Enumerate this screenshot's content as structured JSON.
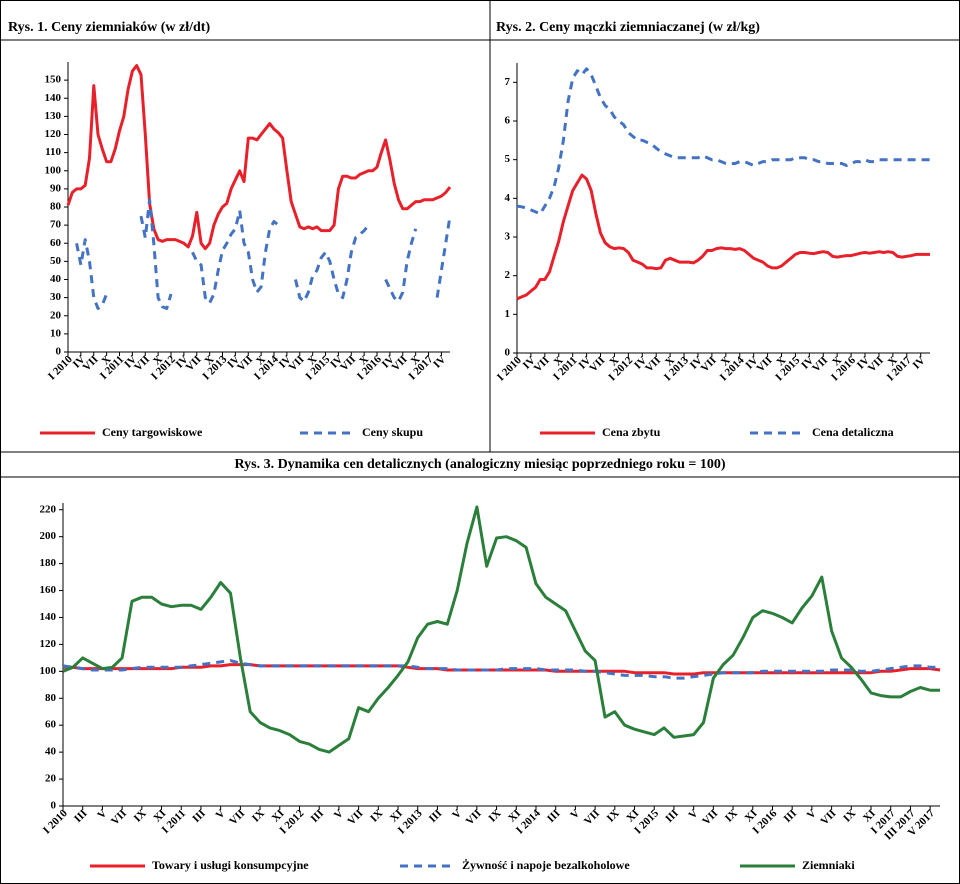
{
  "chart_data": [
    {
      "type": "line",
      "title": "Rys. 1. Ceny ziemniaków (w zł/dt)",
      "categories": [
        "I 2010",
        null,
        null,
        "IV",
        null,
        null,
        "VII",
        null,
        null,
        "X",
        null,
        null,
        "I 2011",
        null,
        null,
        "IV",
        null,
        null,
        "VII",
        null,
        null,
        "X",
        null,
        null,
        "I 2012",
        null,
        null,
        "IV",
        null,
        null,
        "VII",
        null,
        null,
        "X",
        null,
        null,
        "I 2013",
        null,
        null,
        "IV",
        null,
        null,
        "VII",
        null,
        null,
        "X",
        null,
        null,
        "I 2014",
        null,
        null,
        "IV",
        null,
        null,
        "VII",
        null,
        null,
        "X",
        null,
        null,
        "I 2015",
        null,
        null,
        "IV",
        null,
        null,
        "VII",
        null,
        null,
        "X",
        null,
        null,
        "I 2016",
        null,
        null,
        "IV",
        null,
        null,
        "VII",
        null,
        null,
        "X",
        null,
        null,
        "I 2017",
        null,
        null,
        "IV",
        null,
        null
      ],
      "ylim": [
        0,
        160
      ],
      "yticks": [
        0,
        10,
        20,
        30,
        40,
        50,
        60,
        70,
        80,
        90,
        100,
        110,
        120,
        130,
        140,
        150
      ],
      "legend": "bottom",
      "series": [
        {
          "name": "Ceny targowiskowe",
          "color": "#e8202a",
          "line_style": "solid",
          "values": [
            81,
            88,
            90,
            90,
            92,
            107,
            147,
            120,
            112,
            105,
            105,
            112,
            122,
            130,
            145,
            155,
            158,
            153,
            120,
            82,
            68,
            62,
            61,
            62,
            62,
            62,
            61,
            60,
            58,
            64,
            77,
            60,
            57,
            60,
            70,
            76,
            80,
            82,
            90,
            95,
            100,
            94,
            118,
            118,
            117,
            120,
            123,
            126,
            123,
            121,
            118,
            100,
            83,
            76,
            69,
            68,
            69,
            68,
            69,
            67,
            67,
            67,
            70,
            90,
            97,
            97,
            96,
            96,
            98,
            99,
            100,
            100,
            102,
            110,
            117,
            106,
            93,
            84,
            79,
            79,
            81,
            83,
            83,
            84,
            84,
            84,
            85,
            86,
            88,
            91
          ]
        },
        {
          "name": "Ceny skupu",
          "color": "#4472c4",
          "line_style": "dashed",
          "values": [
            null,
            null,
            60,
            48,
            62,
            50,
            30,
            24,
            26,
            32,
            null,
            null,
            null,
            null,
            null,
            null,
            null,
            75,
            63,
            84,
            60,
            30,
            25,
            24,
            32,
            null,
            null,
            null,
            null,
            55,
            50,
            48,
            30,
            27,
            32,
            45,
            56,
            60,
            65,
            68,
            78,
            60,
            55,
            40,
            33,
            36,
            55,
            68,
            72,
            70,
            null,
            null,
            null,
            40,
            30,
            28,
            33,
            42,
            45,
            52,
            55,
            50,
            40,
            32,
            30,
            40,
            55,
            63,
            65,
            67,
            70,
            null,
            null,
            null,
            40,
            35,
            30,
            28,
            33,
            50,
            60,
            68,
            null,
            null,
            null,
            null,
            30,
            45,
            60,
            75
          ]
        }
      ]
    },
    {
      "type": "line",
      "title": "Rys. 2. Ceny mączki ziemniaczanej (w zł/kg)",
      "categories": [
        "I 2010",
        null,
        null,
        "IV",
        null,
        null,
        "VII",
        null,
        null,
        "X",
        null,
        null,
        "I 2011",
        null,
        null,
        "IV",
        null,
        null,
        "VII",
        null,
        null,
        "X",
        null,
        null,
        "I 2012",
        null,
        null,
        "IV",
        null,
        null,
        "VII",
        null,
        null,
        "X",
        null,
        null,
        "I 2013",
        null,
        null,
        "IV",
        null,
        null,
        "VII",
        null,
        null,
        "X",
        null,
        null,
        "I 2014",
        null,
        null,
        "IV",
        null,
        null,
        "VII",
        null,
        null,
        "X",
        null,
        null,
        "I 2015",
        null,
        null,
        "IV",
        null,
        null,
        "VII",
        null,
        null,
        "X",
        null,
        null,
        "I 2016",
        null,
        null,
        "IV",
        null,
        null,
        "VII",
        null,
        null,
        "X",
        null,
        null,
        "I 2017",
        null,
        null,
        "IV",
        null,
        null
      ],
      "ylim": [
        0,
        7.5
      ],
      "yticks": [
        0,
        1,
        2,
        3,
        4,
        5,
        6,
        7
      ],
      "legend": "bottom",
      "series": [
        {
          "name": "Cena zbytu",
          "color": "#e8202a",
          "line_style": "solid",
          "values": [
            1.4,
            1.45,
            1.5,
            1.6,
            1.7,
            1.9,
            1.9,
            2.1,
            2.5,
            2.9,
            3.4,
            3.8,
            4.2,
            4.4,
            4.6,
            4.5,
            4.2,
            3.6,
            3.1,
            2.85,
            2.75,
            2.7,
            2.72,
            2.7,
            2.6,
            2.4,
            2.35,
            2.3,
            2.2,
            2.2,
            2.18,
            2.2,
            2.4,
            2.45,
            2.4,
            2.35,
            2.35,
            2.35,
            2.33,
            2.4,
            2.5,
            2.65,
            2.65,
            2.7,
            2.72,
            2.7,
            2.7,
            2.68,
            2.7,
            2.65,
            2.55,
            2.45,
            2.4,
            2.35,
            2.25,
            2.2,
            2.2,
            2.25,
            2.35,
            2.45,
            2.55,
            2.6,
            2.6,
            2.58,
            2.57,
            2.6,
            2.62,
            2.6,
            2.5,
            2.48,
            2.5,
            2.52,
            2.52,
            2.55,
            2.58,
            2.6,
            2.58,
            2.6,
            2.62,
            2.6,
            2.62,
            2.6,
            2.5,
            2.48,
            2.5,
            2.52,
            2.55,
            2.55,
            2.55,
            2.55
          ]
        },
        {
          "name": "Cena detaliczna",
          "color": "#4472c4",
          "line_style": "dashed",
          "values": [
            3.8,
            3.78,
            3.75,
            3.7,
            3.65,
            3.6,
            3.8,
            4.0,
            4.3,
            4.8,
            5.5,
            6.5,
            7.1,
            7.3,
            7.2,
            7.35,
            7.2,
            6.9,
            6.6,
            6.4,
            6.3,
            6.1,
            6.0,
            5.9,
            5.7,
            5.6,
            5.5,
            5.5,
            5.45,
            5.4,
            5.3,
            5.2,
            5.15,
            5.1,
            5.05,
            5.05,
            5.05,
            5.05,
            5.05,
            5.05,
            5.1,
            5.05,
            5.0,
            5.0,
            4.95,
            4.9,
            4.9,
            4.9,
            4.95,
            4.95,
            4.9,
            4.85,
            4.9,
            4.95,
            4.95,
            5.0,
            5.0,
            5.0,
            5.0,
            5.0,
            5.05,
            5.05,
            5.05,
            5.0,
            5.0,
            4.95,
            4.95,
            4.9,
            4.9,
            4.9,
            4.9,
            4.85,
            4.9,
            4.95,
            4.95,
            5.0,
            4.95,
            4.95,
            5.0,
            5.0,
            5.0,
            5.0,
            5.0,
            5.0,
            5.0,
            5.0,
            5.0,
            5.0,
            5.0,
            5.0
          ]
        }
      ]
    },
    {
      "type": "line",
      "title": "Rys. 3. Dynamika cen detalicznych (analogiczny miesiąc poprzedniego roku = 100)",
      "categories": [
        "I 2010",
        null,
        "III",
        null,
        "V",
        null,
        "VII",
        null,
        "IX",
        null,
        "XI",
        null,
        "I 2011",
        null,
        "III",
        null,
        "V",
        null,
        "VII",
        null,
        "IX",
        null,
        "XI",
        null,
        "I 2012",
        null,
        "III",
        null,
        "V",
        null,
        "VII",
        null,
        "IX",
        null,
        "XI",
        null,
        "I 2013",
        null,
        "III",
        null,
        "V",
        null,
        "VII",
        null,
        "IX",
        null,
        "XI",
        null,
        "I 2014",
        null,
        "III",
        null,
        "V",
        null,
        "VII",
        null,
        "IX",
        null,
        "XI",
        null,
        "I 2015",
        null,
        "III",
        null,
        "V",
        null,
        "VII",
        null,
        "IX",
        null,
        "XI",
        null,
        "I 2016",
        null,
        "III",
        null,
        "V",
        null,
        "VII",
        null,
        "IX",
        null,
        "XI",
        null,
        "I 2017",
        null,
        "III 2017",
        null,
        "V 2017",
        null
      ],
      "ylim": [
        0,
        225
      ],
      "yticks": [
        0,
        20,
        40,
        60,
        80,
        100,
        120,
        140,
        160,
        180,
        200,
        220
      ],
      "legend": "bottom",
      "series": [
        {
          "name": "Towary i usługi konsumpcyjne",
          "color": "#e8202a",
          "line_style": "solid",
          "values": [
            103,
            103,
            102,
            102,
            102,
            102,
            102,
            102,
            102,
            102,
            102,
            102,
            103,
            103,
            103,
            104,
            104,
            105,
            105,
            105,
            104,
            104,
            104,
            104,
            104,
            104,
            104,
            104,
            104,
            104,
            104,
            104,
            104,
            104,
            104,
            103,
            102,
            102,
            102,
            101,
            101,
            101,
            101,
            101,
            101,
            101,
            101,
            101,
            101,
            101,
            100,
            100,
            100,
            100,
            100,
            100,
            100,
            100,
            99,
            99,
            99,
            99,
            98,
            98,
            98,
            99,
            99,
            99,
            99,
            99,
            99,
            99,
            99,
            99,
            99,
            99,
            99,
            99,
            99,
            99,
            99,
            99,
            99,
            100,
            100,
            101,
            102,
            102,
            102,
            101
          ]
        },
        {
          "name": "Żywność i napoje bezalkoholowe",
          "color": "#4472c4",
          "line_style": "dashed",
          "values": [
            104,
            103,
            102,
            101,
            101,
            101,
            101,
            102,
            103,
            103,
            103,
            103,
            103,
            104,
            105,
            106,
            107,
            108,
            106,
            105,
            104,
            104,
            104,
            104,
            104,
            104,
            104,
            104,
            104,
            104,
            104,
            104,
            104,
            104,
            104,
            104,
            103,
            102,
            102,
            102,
            101,
            101,
            101,
            101,
            101,
            102,
            102,
            102,
            102,
            101,
            101,
            101,
            101,
            100,
            100,
            99,
            98,
            97,
            97,
            97,
            96,
            96,
            95,
            95,
            96,
            97,
            98,
            99,
            99,
            99,
            99,
            100,
            100,
            100,
            100,
            100,
            100,
            100,
            101,
            101,
            101,
            100,
            100,
            101,
            102,
            103,
            104,
            104,
            103,
            103
          ]
        },
        {
          "name": "Ziemniaki",
          "color": "#2a7f3a",
          "line_style": "solid",
          "values": [
            100,
            103,
            110,
            106,
            102,
            103,
            110,
            152,
            155,
            155,
            150,
            148,
            149,
            149,
            146,
            155,
            166,
            158,
            110,
            70,
            62,
            58,
            56,
            53,
            48,
            46,
            42,
            40,
            45,
            50,
            73,
            70,
            80,
            88,
            97,
            107,
            125,
            135,
            137,
            135,
            160,
            195,
            222,
            178,
            199,
            200,
            197,
            192,
            165,
            155,
            150,
            145,
            130,
            115,
            108,
            66,
            70,
            60,
            57,
            55,
            53,
            58,
            51,
            52,
            53,
            62,
            95,
            105,
            112,
            125,
            140,
            145,
            143,
            140,
            136,
            147,
            156,
            170,
            130,
            110,
            103,
            94,
            84,
            82,
            81,
            81,
            85,
            88,
            86,
            86
          ]
        }
      ]
    }
  ]
}
